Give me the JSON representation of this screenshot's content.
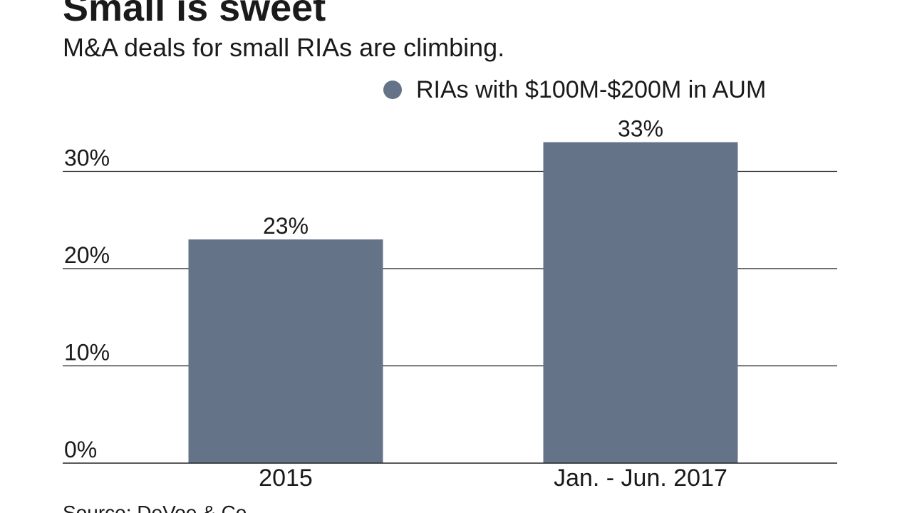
{
  "title": "Small is sweet",
  "subtitle": "M&A deals for small RIAs are climbing.",
  "source": "Source: DeVoe & Co.",
  "colors": {
    "bar": "#647387",
    "gridline": "#1a1a1a",
    "text": "#1a1a1a"
  },
  "chart_data": {
    "type": "bar",
    "categories": [
      "2015",
      "Jan. - Jun. 2017"
    ],
    "series": [
      {
        "name": "RIAs with $100M-$200M in AUM",
        "values": [
          23,
          33
        ],
        "value_labels": [
          "23%",
          "33%"
        ]
      }
    ],
    "ylim": [
      0,
      30
    ],
    "yticks": [
      0,
      10,
      20,
      30
    ],
    "ytick_labels": [
      "0%",
      "10%",
      "20%",
      "30%"
    ],
    "xlabel": "",
    "ylabel": "",
    "grid": true,
    "legend": "top-right"
  }
}
